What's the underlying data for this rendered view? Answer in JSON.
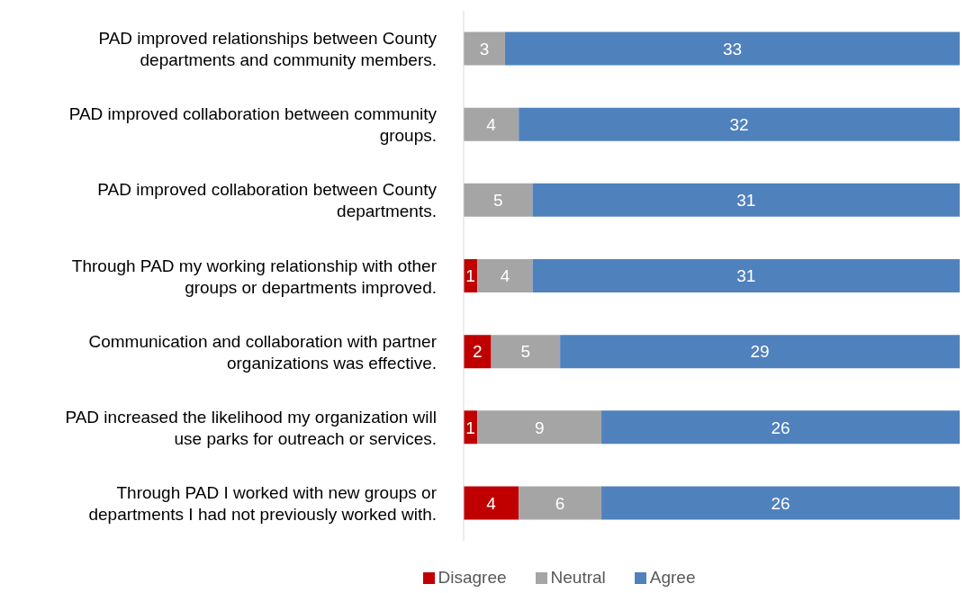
{
  "chart_data": {
    "type": "bar",
    "orientation": "horizontal",
    "stacked": true,
    "data_labels": true,
    "legend": "bottom",
    "categories": [
      "PAD improved relationships between County departments and community members.",
      "PAD improved collaboration between community groups.",
      "PAD improved collaboration between County departments.",
      "Through PAD my working relationship with other groups or departments improved.",
      "Communication and collaboration with partner organizations was effective.",
      "PAD increased the likelihood my organization will use parks for outreach or services.",
      "Through PAD I worked with new groups or departments I had not previously worked with."
    ],
    "series": [
      {
        "name": "Disagree",
        "color": "#c00000",
        "values": [
          null,
          null,
          null,
          1,
          2,
          1,
          4
        ]
      },
      {
        "name": "Neutral",
        "color": "#a5a5a5",
        "values": [
          3,
          4,
          5,
          4,
          5,
          9,
          6
        ]
      },
      {
        "name": "Agree",
        "color": "#4f81bd",
        "values": [
          33,
          32,
          31,
          31,
          29,
          26,
          26
        ]
      }
    ]
  }
}
